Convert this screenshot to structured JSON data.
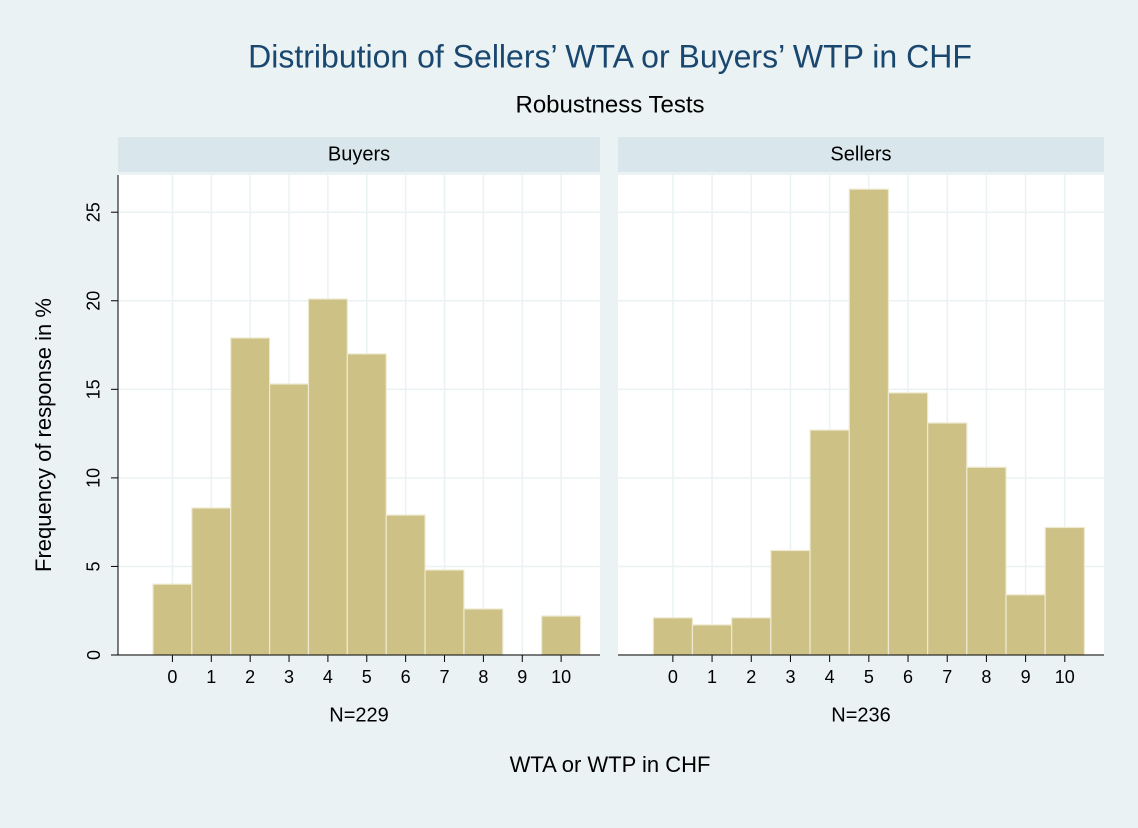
{
  "chart_data": {
    "type": "histogram",
    "title": "Distribution of Sellers’ WTA or Buyers’ WTP in CHF",
    "subtitle": "Robustness Tests",
    "ylabel": "Frequency of response in %",
    "xlabel": "WTA or WTP in CHF",
    "color": "#cdc185",
    "grid": true,
    "ylim": [
      0,
      27.1
    ],
    "yticks": [
      0,
      5,
      10,
      15,
      20,
      25
    ],
    "xlim": [
      -1.4,
      11
    ],
    "xticks": [
      0,
      1,
      2,
      3,
      4,
      5,
      6,
      7,
      8,
      9,
      10
    ],
    "panels": [
      {
        "name": "Buyers",
        "note": "N=229",
        "bins": [
          -0.5,
          0.5,
          1.5,
          2.5,
          3.5,
          4.5,
          5.5,
          6.5,
          7.5,
          8.5,
          9.5,
          10.5
        ],
        "values": [
          4.0,
          8.3,
          17.9,
          15.3,
          20.1,
          17.0,
          7.9,
          4.8,
          2.6,
          0,
          2.2
        ]
      },
      {
        "name": "Sellers",
        "note": "N=236",
        "bins": [
          -0.5,
          0.5,
          1.5,
          2.5,
          3.5,
          4.5,
          5.5,
          6.5,
          7.5,
          8.5,
          9.5,
          10.5
        ],
        "values": [
          2.1,
          1.7,
          2.1,
          5.9,
          12.7,
          26.3,
          14.8,
          13.1,
          10.6,
          3.4,
          7.2
        ]
      }
    ]
  }
}
